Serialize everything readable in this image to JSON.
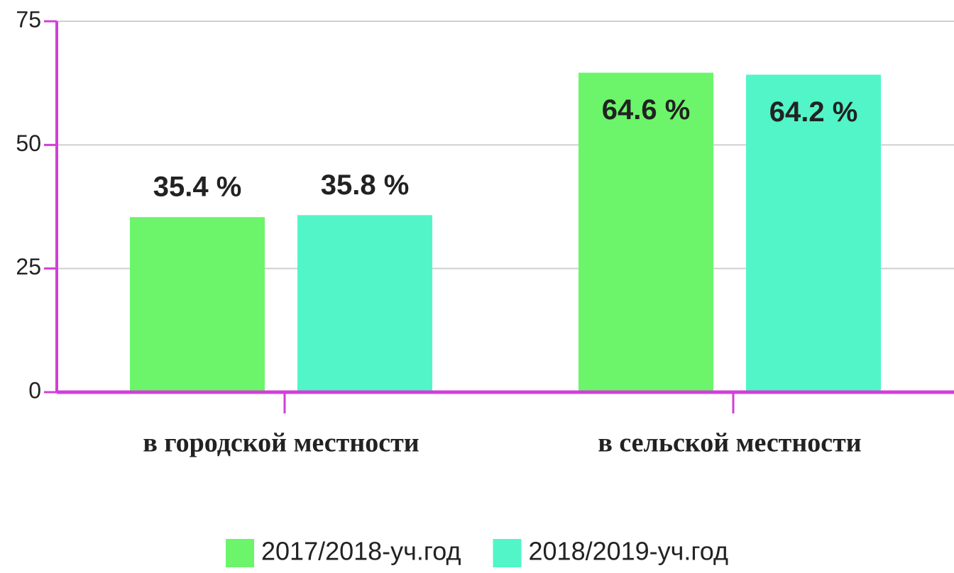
{
  "chart_data": {
    "type": "bar",
    "categories": [
      "в городской местности",
      "в сельской местности"
    ],
    "series": [
      {
        "name": "2017/2018-уч.год",
        "color": "#6cf56a",
        "values": [
          35.4,
          64.6
        ],
        "value_labels": [
          "35.4 %",
          "64.6 %"
        ]
      },
      {
        "name": "2018/2019-уч.год",
        "color": "#52f5c8",
        "values": [
          35.8,
          64.2
        ],
        "value_labels": [
          "35.8 %",
          "64.2 %"
        ]
      }
    ],
    "ylim": [
      0,
      75
    ],
    "yticks": [
      0,
      25,
      50,
      75
    ],
    "grid": true,
    "axis_color": "#d23fd8",
    "legend": "bottom"
  }
}
